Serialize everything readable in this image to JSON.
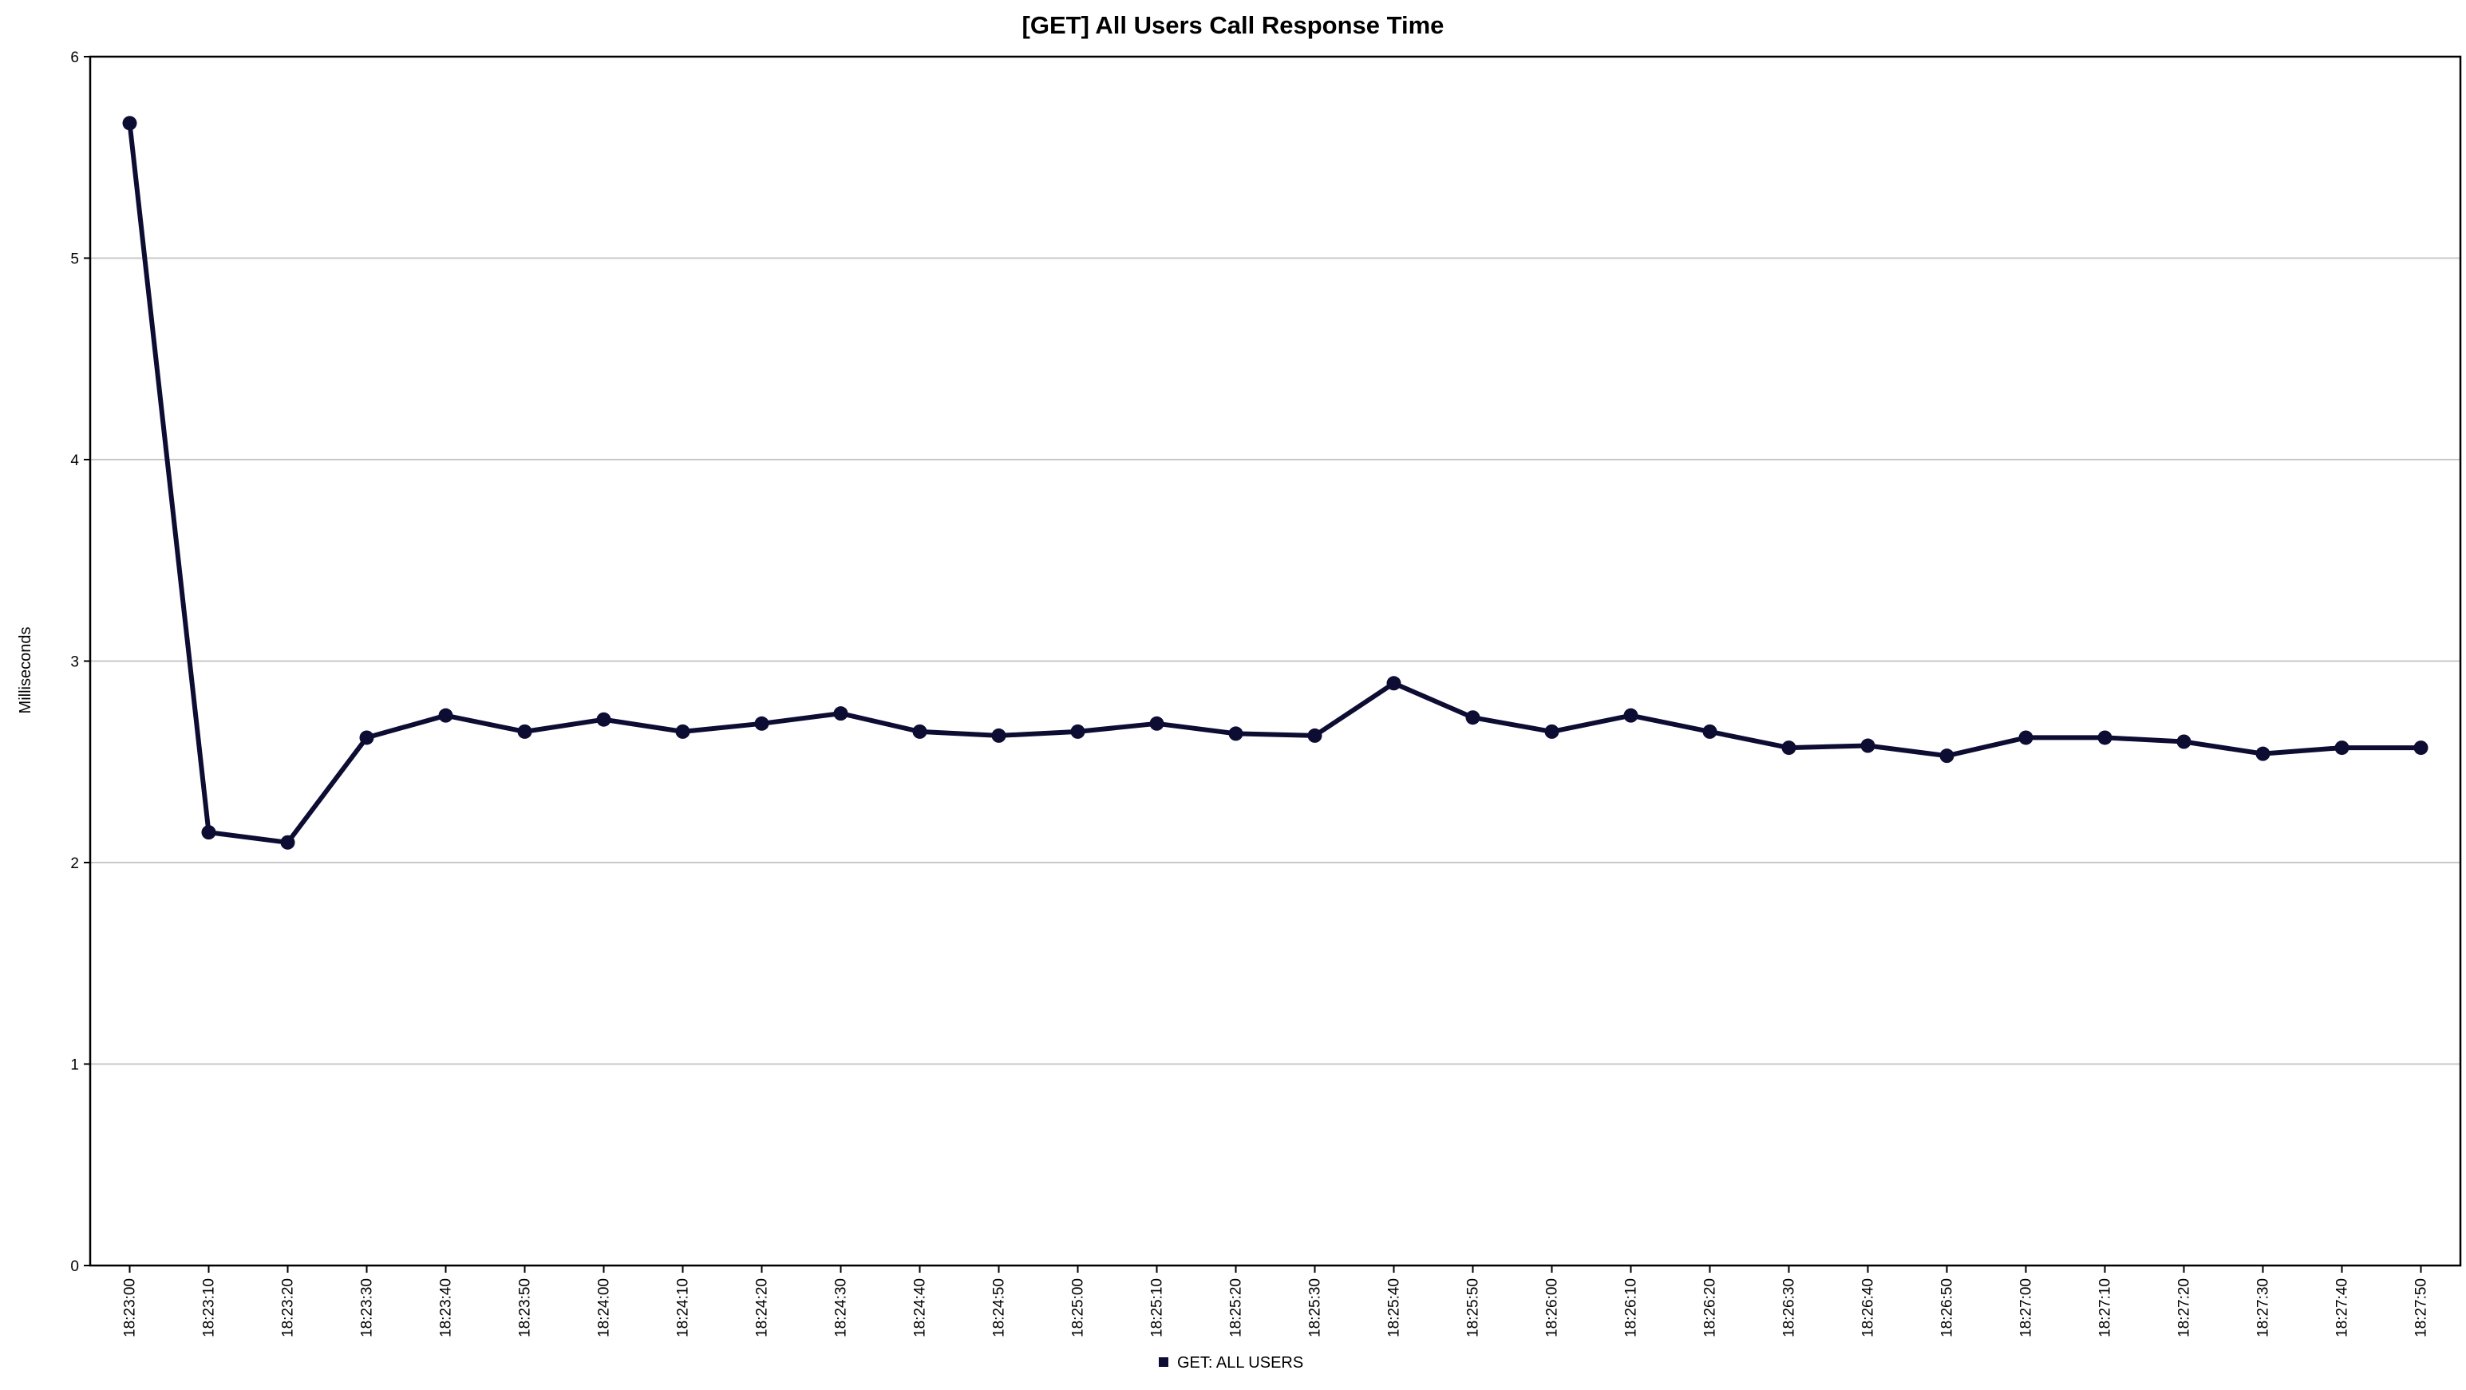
{
  "chart_data": {
    "type": "line",
    "title": "[GET] All Users Call Response Time",
    "xlabel": "",
    "ylabel": "Milliseconds",
    "ylim": [
      0,
      6
    ],
    "yticks": [
      "0",
      "1",
      "2",
      "3",
      "4",
      "5",
      "6"
    ],
    "grid": true,
    "legend_position": "bottom-center",
    "line_color": "#0d0c33",
    "grid_color": "#c8c8c8",
    "categories": [
      "18:23:00",
      "18:23:10",
      "18:23:20",
      "18:23:30",
      "18:23:40",
      "18:23:50",
      "18:24:00",
      "18:24:10",
      "18:24:20",
      "18:24:30",
      "18:24:40",
      "18:24:50",
      "18:25:00",
      "18:25:10",
      "18:25:20",
      "18:25:30",
      "18:25:40",
      "18:25:50",
      "18:26:00",
      "18:26:10",
      "18:26:20",
      "18:26:30",
      "18:26:40",
      "18:26:50",
      "18:27:00",
      "18:27:10",
      "18:27:20",
      "18:27:30",
      "18:27:40",
      "18:27:50"
    ],
    "series": [
      {
        "name": "GET: ALL USERS",
        "values": [
          5.67,
          2.15,
          2.1,
          2.62,
          2.73,
          2.65,
          2.71,
          2.65,
          2.69,
          2.74,
          2.65,
          2.63,
          2.65,
          2.69,
          2.64,
          2.63,
          2.89,
          2.72,
          2.65,
          2.73,
          2.65,
          2.57,
          2.58,
          2.53,
          2.62,
          2.62,
          2.6,
          2.54,
          2.57,
          2.57
        ]
      }
    ]
  }
}
